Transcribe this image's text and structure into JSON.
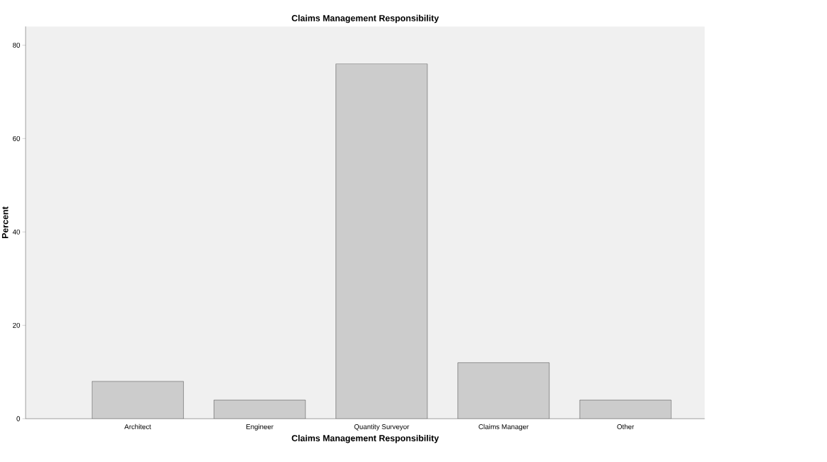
{
  "chart_data": {
    "type": "bar",
    "title": "Claims Management Responsibility",
    "xlabel": "Claims Management Responsibility",
    "ylabel": "Percent",
    "categories": [
      "Architect",
      "Engineer",
      "Quantity Surveyor",
      "Claims Manager",
      "Other"
    ],
    "values": [
      8,
      4,
      76,
      12,
      4
    ],
    "color": "#cccccc",
    "ylim": [
      0,
      84
    ],
    "yticks": [
      0,
      20,
      40,
      60,
      80
    ],
    "grid": false
  }
}
